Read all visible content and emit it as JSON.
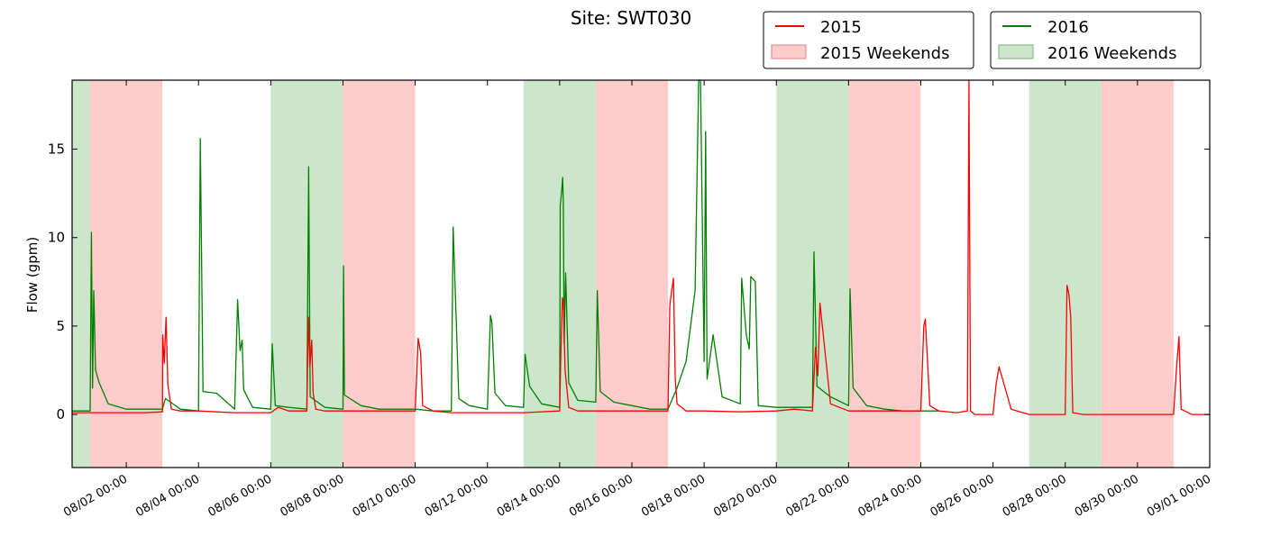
{
  "chart_data": {
    "type": "line",
    "title": "Site: SWT030",
    "xlabel": "",
    "ylabel": "Flow (gpm)",
    "ylim": [
      -3,
      18.9
    ],
    "xlim": [
      "07/31 12:00",
      "09/01 00:00"
    ],
    "y_ticks": [
      0,
      5,
      10,
      15
    ],
    "x_tick_labels": [
      "08/02 00:00",
      "08/04 00:00",
      "08/06 00:00",
      "08/08 00:00",
      "08/10 00:00",
      "08/12 00:00",
      "08/14 00:00",
      "08/16 00:00",
      "08/18 00:00",
      "08/20 00:00",
      "08/22 00:00",
      "08/24 00:00",
      "08/26 00:00",
      "08/28 00:00",
      "08/30 00:00",
      "09/01 00:00"
    ],
    "legend_placement": "top-right, above axes",
    "colors": {
      "s2015": "#ff0000",
      "s2016": "#008000",
      "w2015": "#ffcccc",
      "w2016": "#cce6cc"
    },
    "weekends": [
      {
        "name": "2015 Weekends",
        "spans": [
          [
            "08/01 00:00",
            "08/03 00:00"
          ],
          [
            "08/08 00:00",
            "08/10 00:00"
          ],
          [
            "08/15 00:00",
            "08/17 00:00"
          ],
          [
            "08/22 00:00",
            "08/24 00:00"
          ],
          [
            "08/29 00:00",
            "08/31 00:00"
          ]
        ]
      },
      {
        "name": "2016 Weekends",
        "spans": [
          [
            "07/31 12:00",
            "08/01 00:00"
          ],
          [
            "08/06 00:00",
            "08/08 00:00"
          ],
          [
            "08/13 00:00",
            "08/15 00:00"
          ],
          [
            "08/20 00:00",
            "08/22 00:00"
          ],
          [
            "08/27 00:00",
            "08/29 00:00"
          ]
        ]
      }
    ],
    "series": [
      {
        "name": "2015",
        "x": [
          "07/31 12:00",
          "08/01 00:00",
          "08/01 12:00",
          "08/02 00:00",
          "08/02 12:00",
          "08/03 00:00",
          "08/03 00:12",
          "08/03 01:12",
          "08/03 02:24",
          "08/03 03:36",
          "08/03 06:00",
          "08/03 12:00",
          "08/04 00:00",
          "08/04 12:00",
          "08/05 00:00",
          "08/05 12:00",
          "08/06 00:00",
          "08/06 05:00",
          "08/06 12:00",
          "08/07 00:00",
          "08/07 01:00",
          "08/07 02:00",
          "08/07 03:12",
          "08/07 04:12",
          "08/07 06:00",
          "08/07 12:00",
          "08/08 00:00",
          "08/08 12:00",
          "08/09 00:00",
          "08/09 12:00",
          "08/10 00:00",
          "08/10 02:00",
          "08/10 03:36",
          "08/10 05:00",
          "08/10 12:00",
          "08/11 00:00",
          "08/12 00:00",
          "08/13 00:00",
          "08/14 00:00",
          "08/14 00:48",
          "08/14 01:48",
          "08/14 02:24",
          "08/14 03:36",
          "08/14 06:00",
          "08/14 12:00",
          "08/15 00:00",
          "08/16 00:00",
          "08/17 00:00",
          "08/17 01:12",
          "08/17 02:24",
          "08/17 03:36",
          "08/17 04:48",
          "08/17 06:00",
          "08/17 12:00",
          "08/18 00:00",
          "08/19 00:00",
          "08/20 00:00",
          "08/20 12:00",
          "08/21 00:00",
          "08/21 02:00",
          "08/21 03:36",
          "08/21 05:00",
          "08/21 12:00",
          "08/22 00:00",
          "08/23 00:00",
          "08/24 00:00",
          "08/24 02:00",
          "08/24 03:00",
          "08/24 06:00",
          "08/24 12:00",
          "08/25 00:00",
          "08/25 07:00",
          "08/25 08:00",
          "08/25 09:00",
          "08/25 12:00",
          "08/26 00:00",
          "08/26 02:00",
          "08/26 04:00",
          "08/26 12:00",
          "08/27 00:00",
          "08/28 00:00",
          "08/28 01:12",
          "08/28 02:24",
          "08/28 03:36",
          "08/28 05:00",
          "08/28 12:00",
          "08/29 00:00",
          "08/30 00:00",
          "08/31 00:00",
          "08/31 02:00",
          "08/31 03:36",
          "08/31 05:00",
          "08/31 12:00",
          "09/01 00:00"
        ],
        "y": [
          0.1,
          0.1,
          0.1,
          0.1,
          0.1,
          0.15,
          4.5,
          2.9,
          5.5,
          1.7,
          0.3,
          0.2,
          0.2,
          0.15,
          0.1,
          0.1,
          0.1,
          0.4,
          0.2,
          0.2,
          5.5,
          2.7,
          4.2,
          1.2,
          0.3,
          0.2,
          0.2,
          0.2,
          0.2,
          0.2,
          0.2,
          4.3,
          3.5,
          0.5,
          0.2,
          0.1,
          0.1,
          0.1,
          0.2,
          3.5,
          6.6,
          6.4,
          2.5,
          0.4,
          0.2,
          0.2,
          0.2,
          0.2,
          6.2,
          7.0,
          7.7,
          2.0,
          0.6,
          0.2,
          0.2,
          0.15,
          0.2,
          0.3,
          0.2,
          3.8,
          2.2,
          6.3,
          0.6,
          0.2,
          0.2,
          0.2,
          5.0,
          5.4,
          0.5,
          0.2,
          0.1,
          0.2,
          18.9,
          0.2,
          0.0,
          0.0,
          1.7,
          2.7,
          0.3,
          0.0,
          0.0,
          7.3,
          6.8,
          5.5,
          0.1,
          0.0,
          0.0,
          0.0,
          0.0,
          2.7,
          4.4,
          0.3,
          0.0,
          0.0
        ]
      },
      {
        "name": "2016",
        "x": [
          "07/31 12:00",
          "08/01 00:00",
          "08/01 00:48",
          "08/01 01:36",
          "08/01 02:24",
          "08/01 03:36",
          "08/01 06:00",
          "08/01 12:00",
          "08/02 00:00",
          "08/02 12:00",
          "08/03 00:00",
          "08/03 02:00",
          "08/03 12:00",
          "08/04 00:00",
          "08/04 01:12",
          "08/04 03:00",
          "08/04 12:00",
          "08/05 00:00",
          "08/05 02:00",
          "08/05 03:36",
          "08/05 05:00",
          "08/05 06:00",
          "08/05 12:00",
          "08/06 00:00",
          "08/06 01:00",
          "08/06 03:00",
          "08/06 12:00",
          "08/07 00:00",
          "08/07 01:12",
          "08/07 02:12",
          "08/07 12:00",
          "08/08 00:00",
          "08/08 00:24",
          "08/08 01:00",
          "08/08 12:00",
          "08/09 00:00",
          "08/09 12:00",
          "08/10 00:00",
          "08/10 12:00",
          "08/11 00:00",
          "08/11 01:12",
          "08/11 05:00",
          "08/11 12:00",
          "08/12 00:00",
          "08/12 02:00",
          "08/12 03:00",
          "08/12 05:00",
          "08/12 12:00",
          "08/13 00:00",
          "08/13 01:00",
          "08/13 04:00",
          "08/13 12:00",
          "08/14 00:00",
          "08/14 00:24",
          "08/14 01:24",
          "08/14 02:00",
          "08/14 02:24",
          "08/14 03:00",
          "08/14 04:00",
          "08/14 06:00",
          "08/14 12:00",
          "08/15 00:00",
          "08/15 01:00",
          "08/15 03:00",
          "08/15 12:00",
          "08/16 00:00",
          "08/16 12:00",
          "08/17 00:00",
          "08/17 06:00",
          "08/17 12:00",
          "08/17 18:00",
          "08/17 20:24",
          "08/17 21:36",
          "08/18 00:00",
          "08/18 01:00",
          "08/18 02:00",
          "08/18 06:00",
          "08/18 12:00",
          "08/19 00:00",
          "08/19 01:00",
          "08/19 04:00",
          "08/19 06:00",
          "08/19 07:00",
          "08/19 10:00",
          "08/19 12:00",
          "08/20 00:00",
          "08/20 12:00",
          "08/21 00:00",
          "08/21 01:00",
          "08/21 03:00",
          "08/21 12:00",
          "08/22 00:00",
          "08/22 01:00",
          "08/22 03:00",
          "08/22 12:00",
          "08/23 00:00",
          "08/23 12:00",
          "08/24 00:00",
          "08/24 12:00"
        ],
        "y": [
          0.2,
          0.2,
          10.3,
          1.5,
          7.0,
          2.5,
          1.8,
          0.6,
          0.3,
          0.3,
          0.3,
          0.9,
          0.3,
          0.2,
          15.6,
          1.3,
          1.2,
          0.3,
          6.5,
          3.6,
          4.2,
          1.4,
          0.4,
          0.3,
          4.0,
          0.5,
          0.4,
          0.3,
          14.0,
          1.0,
          0.4,
          0.3,
          8.4,
          1.1,
          0.5,
          0.3,
          0.3,
          0.3,
          0.2,
          0.2,
          10.6,
          0.9,
          0.5,
          0.3,
          5.6,
          5.2,
          1.2,
          0.5,
          0.4,
          3.4,
          1.6,
          0.6,
          0.4,
          11.8,
          12.7,
          13.4,
          12.0,
          4.0,
          8.0,
          1.8,
          0.8,
          0.7,
          7.0,
          1.3,
          0.7,
          0.5,
          0.3,
          0.3,
          1.5,
          3.0,
          7.0,
          18.9,
          18.9,
          3.0,
          16.0,
          2.0,
          4.5,
          1.0,
          0.6,
          7.7,
          4.5,
          3.7,
          7.8,
          7.5,
          0.5,
          0.4,
          0.4,
          0.4,
          9.2,
          1.6,
          1.0,
          0.5,
          7.1,
          1.5,
          0.5,
          0.3,
          0.2,
          0.2,
          0.2
        ]
      }
    ]
  }
}
